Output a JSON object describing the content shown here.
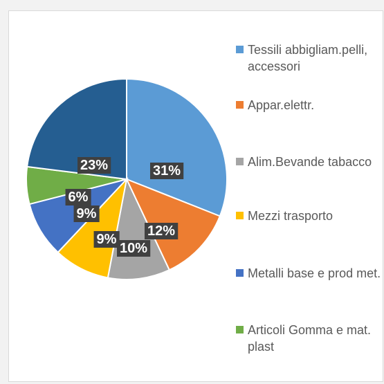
{
  "chart_data": {
    "type": "pie",
    "categories": [
      "Tessili abbigliam.pelli, accessori",
      "Appar.elettr.",
      "Alim.Bevande tabacco",
      "Mezzi trasporto",
      "Metalli base e prod met.",
      "Articoli Gomma e mat. plast",
      null
    ],
    "values": [
      31,
      12,
      10,
      9,
      9,
      6,
      23
    ],
    "value_labels": [
      "31%",
      "12%",
      "10%",
      "9%",
      "9%",
      "6%",
      "23%"
    ],
    "colors": [
      "#5b9bd5",
      "#ed7d31",
      "#a5a5a5",
      "#ffc000",
      "#4472c4",
      "#70ad47",
      "#255e91"
    ],
    "legend": "right"
  }
}
